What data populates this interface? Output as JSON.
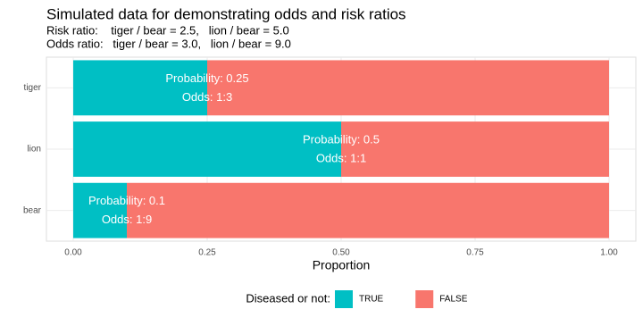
{
  "chart_data": {
    "type": "stacked-barh",
    "title": "Simulated data for demonstrating odds and risk ratios",
    "subtitle": [
      "Risk ratio:    tiger / bear = 2.5,   lion / bear = 5.0",
      "Odds ratio:   tiger / bear = 3.0,   lion / bear = 9.0"
    ],
    "xlabel": "Proportion",
    "legend_title": "Diseased or not:",
    "categories": [
      "tiger",
      "lion",
      "bear"
    ],
    "series": [
      {
        "name": "TRUE",
        "color": "#00BFC4",
        "values": [
          0.25,
          0.5,
          0.1
        ]
      },
      {
        "name": "FALSE",
        "color": "#F8766D",
        "values": [
          0.75,
          0.5,
          0.9
        ]
      }
    ],
    "annotations": [
      [
        "Probability: 0.25",
        "Odds: 1:3"
      ],
      [
        "Probability: 0.5",
        "Odds: 1:1"
      ],
      [
        "Probability: 0.1",
        "Odds: 1:9"
      ]
    ],
    "xlim": [
      -0.05,
      1.05
    ],
    "xticks": [
      {
        "value": 0,
        "label": "0.00"
      },
      {
        "value": 0.25,
        "label": "0.25"
      },
      {
        "value": 0.5,
        "label": "0.50"
      },
      {
        "value": 0.75,
        "label": "0.75"
      },
      {
        "value": 1,
        "label": "1.00"
      }
    ],
    "grid": true,
    "legend": "bottom"
  }
}
